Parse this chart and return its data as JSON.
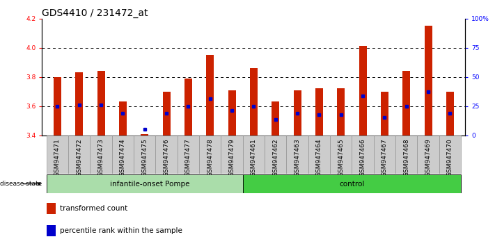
{
  "title": "GDS4410 / 231472_at",
  "samples": [
    "GSM947471",
    "GSM947472",
    "GSM947473",
    "GSM947474",
    "GSM947475",
    "GSM947476",
    "GSM947477",
    "GSM947478",
    "GSM947479",
    "GSM947461",
    "GSM947462",
    "GSM947463",
    "GSM947464",
    "GSM947465",
    "GSM947466",
    "GSM947467",
    "GSM947468",
    "GSM947469",
    "GSM947470"
  ],
  "red_values": [
    3.8,
    3.83,
    3.84,
    3.63,
    3.41,
    3.7,
    3.79,
    3.95,
    3.71,
    3.86,
    3.63,
    3.71,
    3.72,
    3.72,
    4.01,
    3.7,
    3.84,
    4.15,
    3.7
  ],
  "blue_values": [
    3.6,
    3.61,
    3.61,
    3.55,
    3.44,
    3.55,
    3.6,
    3.65,
    3.57,
    3.6,
    3.51,
    3.55,
    3.54,
    3.54,
    3.67,
    3.52,
    3.6,
    3.7,
    3.55
  ],
  "group0_count": 9,
  "group1_count": 10,
  "group0_label": "infantile-onset Pompe",
  "group1_label": "control",
  "group0_color": "#aaddaa",
  "group1_color": "#44cc44",
  "ylim": [
    3.4,
    4.2
  ],
  "y_left_ticks": [
    3.4,
    3.6,
    3.8,
    4.0,
    4.2
  ],
  "y_right_ticks": [
    0,
    25,
    50,
    75,
    100
  ],
  "y_right_labels": [
    "0",
    "25",
    "50",
    "75",
    "100%"
  ],
  "bar_bottom": 3.4,
  "bar_color": "#cc2200",
  "blue_color": "#0000cc",
  "title_fontsize": 10,
  "tick_fontsize": 6.5,
  "bar_width": 0.35,
  "disease_state_label": "disease state"
}
